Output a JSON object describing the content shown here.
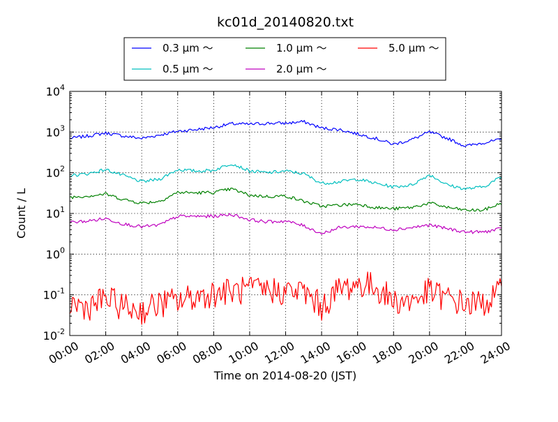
{
  "chart_data": {
    "type": "line",
    "title": "kc01d_20140820.txt",
    "xlabel": "Time on 2014-08-20 (JST)",
    "ylabel": "Count / L",
    "y_scale": "log",
    "ylim": [
      0.01,
      10000
    ],
    "xlim": [
      "00:00",
      "24:00"
    ],
    "grid": true,
    "legend_placement": "top-center",
    "legend_columns": 3,
    "x_ticks": [
      "00:00",
      "02:00",
      "04:00",
      "06:00",
      "08:00",
      "10:00",
      "12:00",
      "14:00",
      "16:00",
      "18:00",
      "20:00",
      "22:00",
      "24:00"
    ],
    "y_ticks": [
      {
        "value": 0.01,
        "base": "10",
        "exp": "-2"
      },
      {
        "value": 0.1,
        "base": "10",
        "exp": "-1"
      },
      {
        "value": 1,
        "base": "10",
        "exp": "0"
      },
      {
        "value": 10,
        "base": "10",
        "exp": "1"
      },
      {
        "value": 100,
        "base": "10",
        "exp": "2"
      },
      {
        "value": 1000,
        "base": "10",
        "exp": "3"
      },
      {
        "value": 10000,
        "base": "10",
        "exp": "4"
      }
    ],
    "x_hours": [
      0,
      1,
      2,
      3,
      4,
      5,
      6,
      7,
      8,
      9,
      10,
      11,
      12,
      13,
      14,
      15,
      16,
      17,
      18,
      19,
      20,
      21,
      22,
      23,
      24
    ],
    "series": [
      {
        "name": "0.3 μm ～",
        "color": "#0000ff",
        "values": [
          700,
          800,
          950,
          800,
          700,
          850,
          1050,
          1150,
          1300,
          1600,
          1550,
          1650,
          1650,
          1800,
          1250,
          1150,
          900,
          700,
          500,
          650,
          1000,
          700,
          450,
          550,
          650
        ]
      },
      {
        "name": "0.5 μm ～",
        "color": "#00bfbf",
        "values": [
          85,
          95,
          120,
          85,
          60,
          70,
          120,
          110,
          115,
          170,
          110,
          100,
          110,
          95,
          55,
          60,
          70,
          55,
          45,
          50,
          90,
          50,
          40,
          45,
          80
        ]
      },
      {
        "name": "1.0 μm ～",
        "color": "#008000",
        "values": [
          25,
          27,
          30,
          22,
          18,
          20,
          33,
          32,
          33,
          40,
          28,
          26,
          27,
          20,
          15,
          16,
          17,
          14,
          13,
          14,
          18,
          14,
          12,
          12,
          18
        ]
      },
      {
        "name": "2.0 μm ～",
        "color": "#bf00bf",
        "values": [
          6,
          6.5,
          7.5,
          5.5,
          4.7,
          5.2,
          8.5,
          8.5,
          8.5,
          9.5,
          7,
          6.2,
          6.5,
          5,
          3.2,
          4.5,
          4.8,
          4.5,
          4,
          4.5,
          5.2,
          4.2,
          3.5,
          3.5,
          4.2
        ]
      },
      {
        "name": "5.0 μm ～",
        "color": "#ff0000",
        "values": [
          0.06,
          0.05,
          0.08,
          0.05,
          0.04,
          0.06,
          0.07,
          0.09,
          0.11,
          0.12,
          0.13,
          0.13,
          0.12,
          0.12,
          0.05,
          0.14,
          0.18,
          0.16,
          0.07,
          0.07,
          0.12,
          0.08,
          0.06,
          0.06,
          0.12
        ]
      }
    ]
  }
}
